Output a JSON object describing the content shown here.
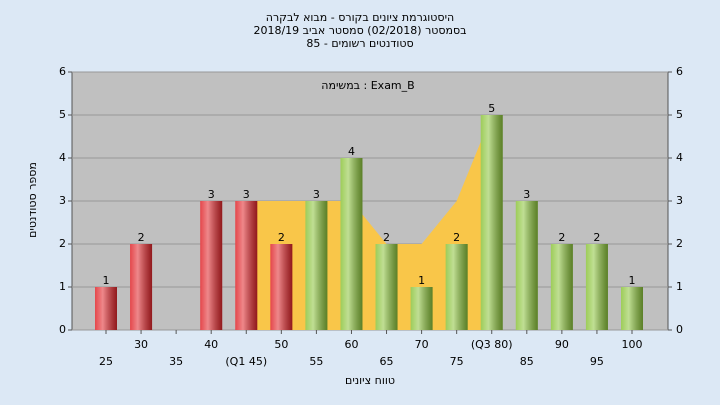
{
  "chart_data": {
    "type": "bar",
    "title": [
      "היסטוגרמת ציונים בקורס - מבוא לבקרה",
      "בסמסטר  (02/2018)  סמסטר אביב 2018/19",
      "סטודנטים רשומים - 85"
    ],
    "annotation": "במשימה : Exam_B",
    "xlabel": "טווח ציונים",
    "ylabel": "מספר סטודנטים",
    "categories": [
      "25",
      "30",
      "35",
      "40",
      "(Q1 45)",
      "50",
      "55",
      "60",
      "65",
      "70",
      "75",
      "(Q3 80)",
      "85",
      "90",
      "95",
      "100"
    ],
    "values": [
      1,
      2,
      null,
      3,
      3,
      2,
      3,
      4,
      2,
      1,
      2,
      5,
      3,
      2,
      2,
      1
    ],
    "bar_colors": [
      "#e0262b",
      "#e0262b",
      "#e0262b",
      "#e0262b",
      "#e0262b",
      "#e0262b",
      "#8cc43c",
      "#8cc43c",
      "#8cc43c",
      "#8cc43c",
      "#8cc43c",
      "#8cc43c",
      "#8cc43c",
      "#8cc43c",
      "#8cc43c",
      "#8cc43c"
    ],
    "area": {
      "color": "#f9c649",
      "values": [
        null,
        null,
        null,
        null,
        3,
        3,
        3,
        3,
        2,
        2,
        3,
        5,
        null,
        null,
        null,
        null
      ]
    },
    "ylim": [
      0,
      6
    ],
    "yticks": [
      0,
      1,
      2,
      3,
      4,
      5,
      6
    ],
    "grid": true
  }
}
